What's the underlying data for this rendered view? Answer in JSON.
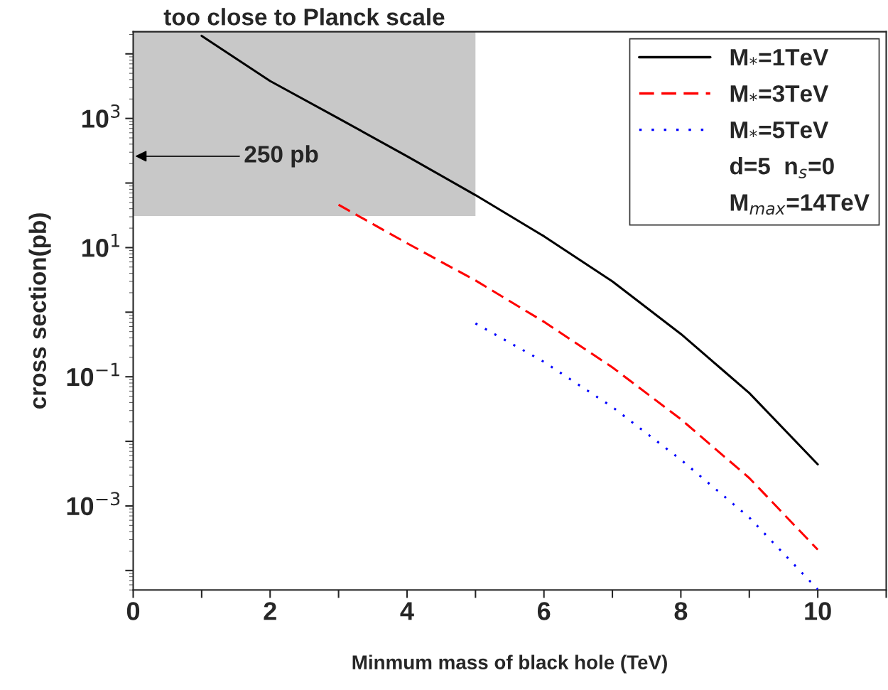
{
  "chart_data": {
    "type": "line",
    "xlabel": "Minmum mass of black hole (TeV)",
    "ylabel": "cross section(pb)",
    "log": "y",
    "xlim": [
      0,
      11
    ],
    "ylim": [
      5e-05,
      22000
    ],
    "xticks": [
      0,
      {
        "value": 1,
        "label": null
      },
      2,
      {
        "value": 3,
        "label": null
      },
      4,
      {
        "value": 5,
        "label": null
      },
      6,
      {
        "value": 7,
        "label": null
      },
      8,
      {
        "value": 9,
        "label": null
      },
      10,
      {
        "value": 11,
        "label": null
      }
    ],
    "yticks": [
      {
        "value": 0.0001,
        "label": null
      },
      {
        "value": 0.001,
        "label": "10$^{−3}$"
      },
      {
        "value": 0.01,
        "label": null
      },
      {
        "value": 0.1,
        "label": "10$^{−1}$"
      },
      {
        "value": 1,
        "label": null
      },
      {
        "value": 10,
        "label": "10$^{1}$"
      },
      {
        "value": 100,
        "label": null
      },
      {
        "value": 1000,
        "label": "10$^{3}$"
      },
      {
        "value": 10000,
        "label": null
      }
    ],
    "x": [
      1,
      2,
      3,
      4,
      5,
      6,
      7,
      8,
      9,
      10
    ],
    "series": [
      {
        "name": "M$_{*}$=1TeV",
        "color": "#000000",
        "line_style": "solid",
        "values": [
          19000,
          3800,
          1000,
          260,
          65,
          15,
          3,
          0.46,
          0.056,
          0.0044
        ]
      },
      {
        "name": "M$_{*}$=3TeV",
        "color": "#ff0000",
        "line_style": "dashed",
        "values": [
          null,
          null,
          46,
          11.7,
          3.1,
          0.71,
          0.14,
          0.022,
          0.0027,
          0.00021
        ]
      },
      {
        "name": "M$_{*}$=5TeV",
        "color": "#0000ff",
        "line_style": "dotted",
        "values": [
          null,
          null,
          null,
          null,
          0.67,
          0.17,
          0.034,
          0.0052,
          0.00066,
          5.1e-05
        ]
      }
    ],
    "bands": [
      {
        "axis": "x",
        "from": 0,
        "to": 5,
        "label": "too close to Planck scale",
        "color": "#c8c8c8"
      }
    ],
    "annotations": [
      "250 pb",
      "d=5  n$_{s}$=0",
      "M$_{max}$=14TeV"
    ],
    "legend": "top right",
    "grid": false
  }
}
